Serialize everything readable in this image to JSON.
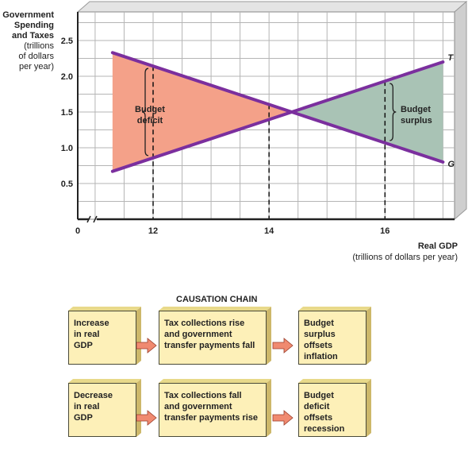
{
  "chart_data": {
    "type": "line",
    "ylabel_lines": [
      "Government",
      "Spending",
      "and Taxes"
    ],
    "ylabel_sub": [
      "(trillions",
      "of dollars",
      "per year)"
    ],
    "xlabel": "Real GDP",
    "xlabel_sub": "(trillions of dollars per year)",
    "x_ticks": [
      "0",
      "12",
      "14",
      "16"
    ],
    "y_ticks": [
      "0.5",
      "1.0",
      "1.5",
      "2.0",
      "2.5"
    ],
    "xlim": [
      10.7,
      17.2
    ],
    "ylim": [
      0,
      2.9
    ],
    "grid": true,
    "series": [
      {
        "name": "T",
        "color": "#7b2f9e",
        "x": [
          11.3,
          17
        ],
        "y": [
          0.67,
          2.2
        ]
      },
      {
        "name": "G",
        "color": "#7b2f9e",
        "x": [
          11.3,
          17
        ],
        "y": [
          2.33,
          0.8
        ]
      }
    ],
    "dashed_lines_x": [
      12,
      14,
      16
    ],
    "regions": [
      {
        "label": "Budget\ndeficit",
        "color": "#f4a189",
        "x_range": [
          11.3,
          14
        ]
      },
      {
        "label": "Budget\nsurplus",
        "color": "#a9c3b5",
        "x_range": [
          14,
          17
        ]
      }
    ],
    "annotations": {
      "deficit": [
        "Budget",
        "deficit"
      ],
      "surplus": [
        "Budget",
        "surplus"
      ]
    }
  },
  "causation": {
    "title": "CAUSATION CHAIN",
    "rows": [
      {
        "a": [
          "Increase",
          "in real",
          "GDP"
        ],
        "b": [
          "Tax collections rise",
          "and government",
          "transfer payments fall"
        ],
        "c": [
          "Budget surplus",
          "offsets",
          "inflation"
        ]
      },
      {
        "a": [
          "Decrease",
          "in real",
          "GDP"
        ],
        "b": [
          "Tax collections fall",
          "and government",
          "transfer payments rise"
        ],
        "c": [
          "Budget deficit",
          "offsets",
          "recession"
        ]
      }
    ]
  },
  "colors": {
    "line": "#7b2f9e",
    "deficit": "#f4a189",
    "surplus": "#a9c3b5",
    "box": "#fdf0b8",
    "arrow": "#f08a70"
  }
}
